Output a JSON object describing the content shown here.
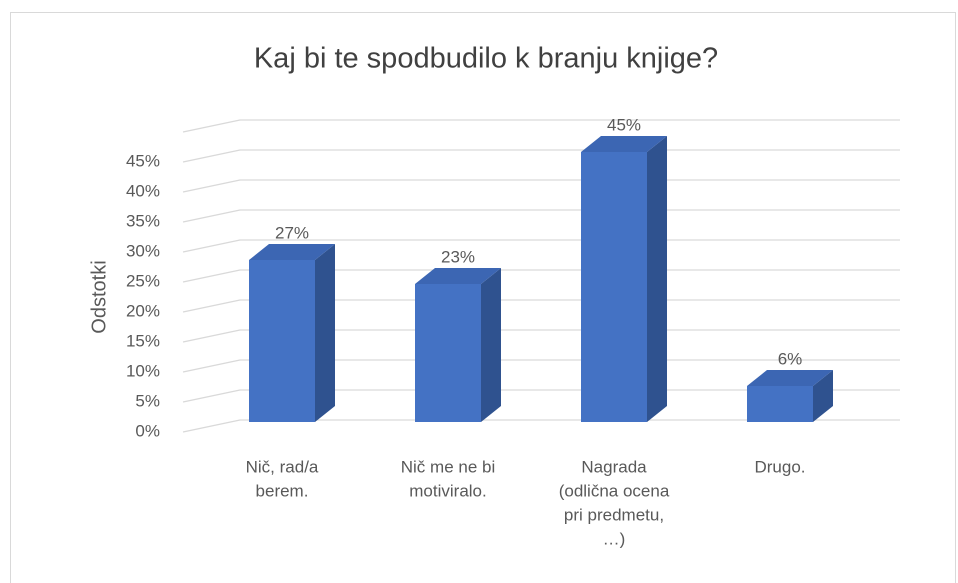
{
  "chart_data": {
    "type": "bar3d",
    "title": "Kaj bi te spodbudilo k branju knjige?",
    "y_axis_label": "Odstotki",
    "categories": [
      [
        "Nič, rad/a",
        "berem."
      ],
      [
        "Nič me ne bi",
        "motiviralo."
      ],
      [
        "Nagrada",
        "(odlična ocena",
        "pri predmetu,",
        "…)"
      ],
      [
        "Drugo."
      ]
    ],
    "values": [
      27,
      23,
      45,
      6
    ],
    "value_labels": [
      "27%",
      "23%",
      "45%",
      "6%"
    ],
    "color": "#4472c4",
    "ylim": [
      0,
      50
    ],
    "yticks": [
      {
        "value": 0,
        "label": "0%"
      },
      {
        "value": 5,
        "label": "5%"
      },
      {
        "value": 10,
        "label": "10%"
      },
      {
        "value": 15,
        "label": "15%"
      },
      {
        "value": 20,
        "label": "20%"
      },
      {
        "value": 25,
        "label": "25%"
      },
      {
        "value": 30,
        "label": "30%"
      },
      {
        "value": 35,
        "label": "35%"
      },
      {
        "value": 40,
        "label": "40%"
      },
      {
        "value": 45,
        "label": "45%"
      }
    ],
    "grid": true
  }
}
